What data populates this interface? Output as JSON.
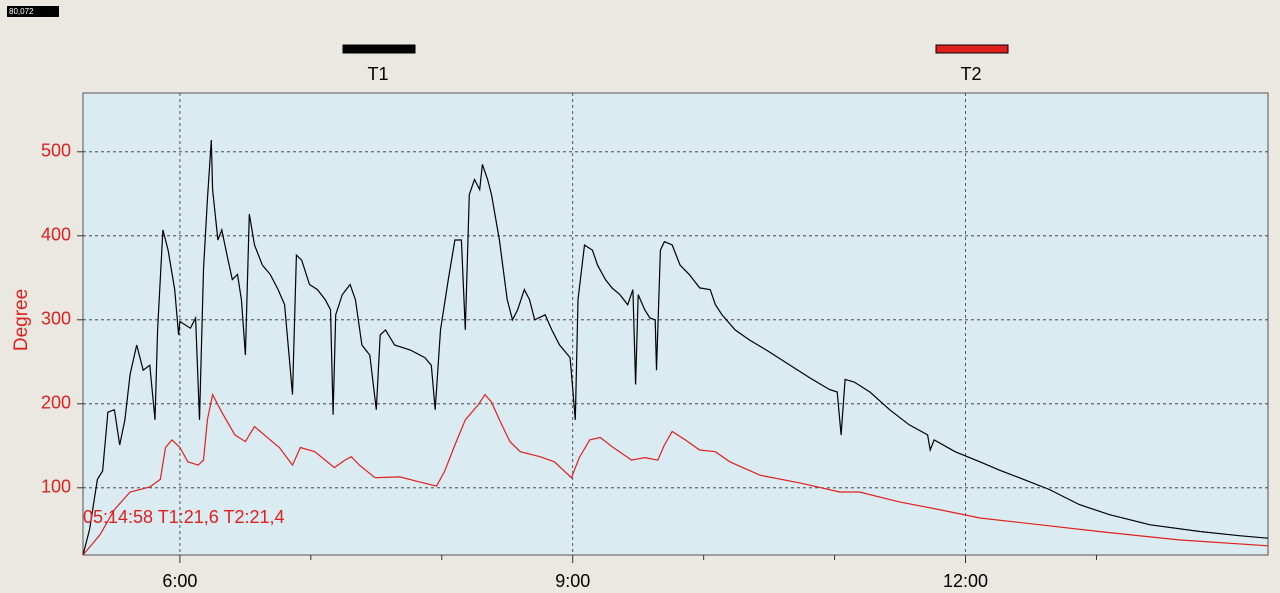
{
  "header": {
    "counter": "80,072"
  },
  "chart_data": {
    "type": "line",
    "ylabel": "Degree",
    "annotation": "05:14:58 T1:21,6 T2:21,4",
    "xlim": [
      5.26,
      14.31
    ],
    "ylim": [
      20,
      570
    ],
    "xticks": [
      {
        "value": 6,
        "label": "6:00"
      },
      {
        "value": 9,
        "label": "9:00"
      },
      {
        "value": 12,
        "label": "12:00"
      }
    ],
    "xminorticks": [
      7,
      8,
      10,
      11,
      13
    ],
    "yticks": [
      100,
      200,
      300,
      400,
      500
    ],
    "grid": true,
    "legend": "top",
    "series": [
      {
        "name": "T1",
        "color": "#000000",
        "x": [
          5.26,
          5.31,
          5.37,
          5.41,
          5.45,
          5.5,
          5.54,
          5.58,
          5.62,
          5.67,
          5.72,
          5.77,
          5.81,
          5.83,
          5.87,
          5.91,
          5.96,
          5.99,
          6.0,
          6.08,
          6.12,
          6.15,
          6.18,
          6.21,
          6.24,
          6.25,
          6.29,
          6.32,
          6.36,
          6.4,
          6.44,
          6.47,
          6.5,
          6.53,
          6.57,
          6.63,
          6.69,
          6.75,
          6.8,
          6.86,
          6.89,
          6.93,
          6.99,
          7.05,
          7.11,
          7.15,
          7.17,
          7.19,
          7.24,
          7.3,
          7.34,
          7.39,
          7.45,
          7.5,
          7.53,
          7.57,
          7.64,
          7.76,
          7.87,
          7.92,
          7.95,
          7.99,
          8.05,
          8.1,
          8.15,
          8.18,
          8.21,
          8.25,
          8.29,
          8.31,
          8.35,
          8.38,
          8.44,
          8.5,
          8.54,
          8.58,
          8.63,
          8.67,
          8.71,
          8.79,
          8.84,
          8.9,
          8.98,
          9.02,
          9.04,
          9.09,
          9.15,
          9.19,
          9.25,
          9.3,
          9.36,
          9.42,
          9.46,
          9.48,
          9.5,
          9.55,
          9.59,
          9.63,
          9.64,
          9.67,
          9.7,
          9.76,
          9.82,
          9.89,
          9.97,
          10.05,
          10.09,
          10.14,
          10.24,
          10.35,
          10.5,
          10.66,
          10.81,
          10.96,
          11.02,
          11.05,
          11.08,
          11.15,
          11.27,
          11.42,
          11.57,
          11.71,
          11.73,
          11.76,
          11.92,
          12.11,
          12.26,
          12.41,
          12.64,
          12.87,
          13.1,
          13.41,
          13.79,
          14.09,
          14.31
        ],
        "values": [
          20,
          50,
          110,
          120,
          190,
          193,
          151,
          181,
          235,
          270,
          240,
          246,
          181,
          288,
          407,
          383,
          336,
          282,
          298,
          290,
          302,
          181,
          360,
          443,
          514,
          455,
          395,
          407,
          377,
          348,
          354,
          324,
          258,
          426,
          389,
          365,
          354,
          336,
          318,
          211,
          377,
          371,
          342,
          336,
          324,
          312,
          187,
          306,
          330,
          342,
          324,
          270,
          258,
          193,
          282,
          288,
          270,
          264,
          255,
          246,
          193,
          288,
          348,
          395,
          395,
          288,
          449,
          467,
          455,
          485,
          467,
          449,
          395,
          324,
          300,
          312,
          336,
          324,
          300,
          306,
          288,
          270,
          255,
          181,
          324,
          389,
          383,
          365,
          348,
          338,
          330,
          318,
          336,
          223,
          330,
          312,
          302,
          300,
          240,
          383,
          393,
          389,
          365,
          354,
          338,
          336,
          318,
          306,
          288,
          276,
          262,
          246,
          231,
          217,
          214,
          163,
          229,
          226,
          214,
          193,
          175,
          163,
          145,
          157,
          143,
          131,
          121,
          112,
          98,
          80,
          68,
          56,
          48,
          43,
          40
        ]
      },
      {
        "name": "T2",
        "color": "#e0201e",
        "x": [
          5.26,
          5.39,
          5.5,
          5.62,
          5.77,
          5.85,
          5.89,
          5.94,
          6.0,
          6.06,
          6.14,
          6.18,
          6.21,
          6.25,
          6.32,
          6.42,
          6.5,
          6.57,
          6.69,
          6.76,
          6.86,
          6.92,
          7.03,
          7.11,
          7.18,
          7.26,
          7.31,
          7.37,
          7.49,
          7.68,
          7.83,
          7.96,
          8.02,
          8.1,
          8.18,
          8.28,
          8.33,
          8.38,
          8.44,
          8.52,
          8.6,
          8.75,
          8.86,
          8.99,
          9.05,
          9.13,
          9.21,
          9.3,
          9.45,
          9.55,
          9.65,
          9.7,
          9.76,
          9.86,
          9.97,
          10.09,
          10.2,
          10.43,
          10.73,
          11.04,
          11.19,
          11.5,
          11.8,
          12.11,
          12.57,
          13.02,
          13.63,
          14.31
        ],
        "values": [
          20,
          44,
          74,
          95,
          101,
          110,
          148,
          157,
          148,
          131,
          127,
          133,
          181,
          211,
          190,
          163,
          155,
          173,
          157,
          148,
          127,
          148,
          143,
          133,
          124,
          133,
          137,
          127,
          112,
          113,
          107,
          102,
          119,
          151,
          181,
          199,
          211,
          202,
          181,
          155,
          143,
          137,
          131,
          112,
          136,
          157,
          160,
          149,
          133,
          136,
          133,
          151,
          167,
          157,
          145,
          143,
          131,
          115,
          106,
          95,
          95,
          83,
          74,
          64,
          56,
          48,
          38,
          31
        ]
      }
    ]
  }
}
